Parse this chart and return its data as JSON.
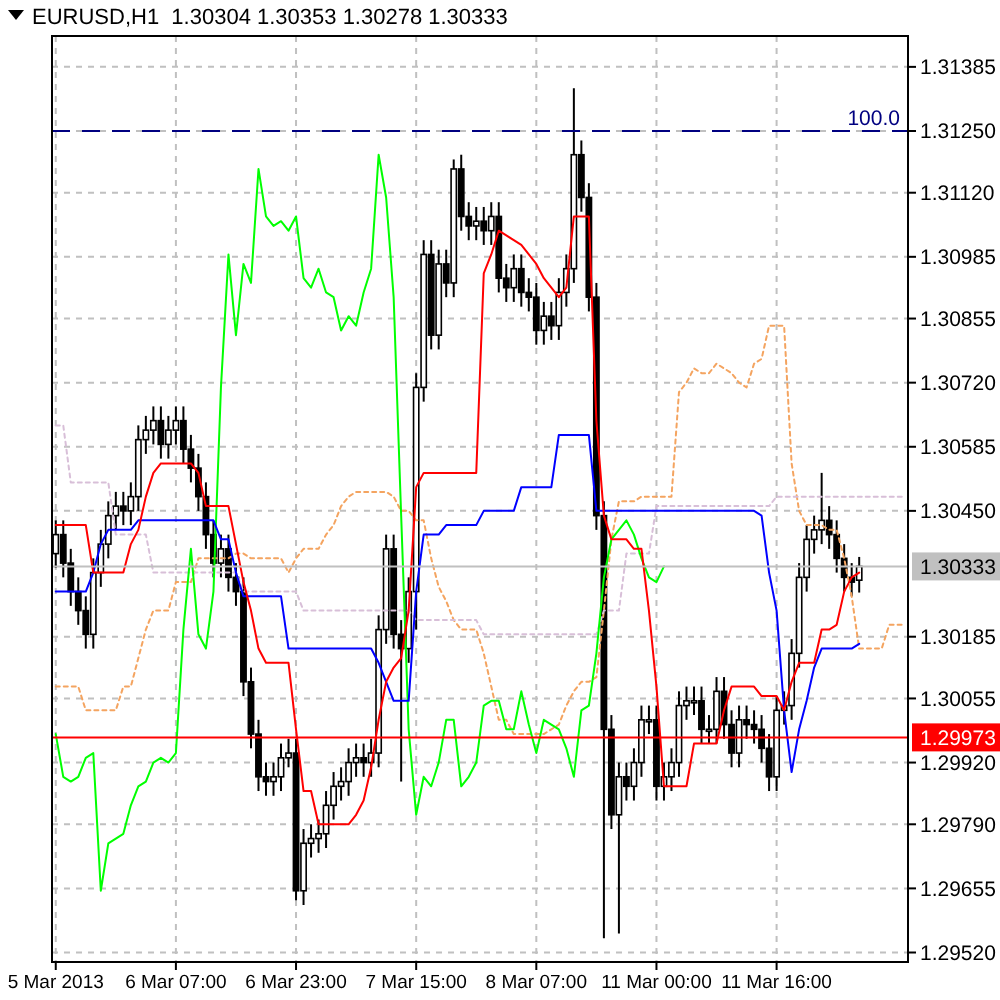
{
  "chart_data": {
    "type": "candlestick",
    "title": "EURUSD,H1  1.30304 1.30353 1.30278 1.30333",
    "categories": [
      "5 Mar 2013",
      null,
      null,
      null,
      null,
      null,
      null,
      null,
      null,
      null,
      null,
      null,
      null,
      null,
      null,
      null,
      "6 Mar 07:00",
      null,
      null,
      null,
      null,
      null,
      null,
      null,
      null,
      null,
      null,
      null,
      null,
      null,
      null,
      null,
      "6 Mar 23:00",
      null,
      null,
      null,
      null,
      null,
      null,
      null,
      null,
      null,
      null,
      null,
      null,
      null,
      null,
      null,
      "7 Mar 15:00",
      null,
      null,
      null,
      null,
      null,
      null,
      null,
      null,
      null,
      null,
      null,
      null,
      null,
      null,
      null,
      "8 Mar 07:00",
      null,
      null,
      null,
      null,
      null,
      null,
      null,
      null,
      null,
      null,
      null,
      null,
      null,
      null,
      null,
      "11 Mar 00:00",
      null,
      null,
      null,
      null,
      null,
      null,
      null,
      null,
      null,
      null,
      null,
      null,
      null,
      null,
      null,
      "11 Mar 16:00",
      null,
      null,
      null,
      null,
      null,
      null,
      null,
      null,
      null,
      null,
      null,
      null,
      null,
      null,
      null,
      null,
      null
    ],
    "ohlc": [
      [
        1.3036,
        1.3043,
        1.3033,
        1.304
      ],
      [
        1.304,
        1.3043,
        1.3031,
        1.3034
      ],
      [
        1.3034,
        1.3037,
        1.3025,
        1.3028
      ],
      [
        1.3028,
        1.3031,
        1.3021,
        1.3024
      ],
      [
        1.3024,
        1.3027,
        1.3016,
        1.3019
      ],
      [
        1.3019,
        1.3035,
        1.3016,
        1.3032
      ],
      [
        1.3032,
        1.3041,
        1.3029,
        1.3038
      ],
      [
        1.3038,
        1.3047,
        1.3035,
        1.3044
      ],
      [
        1.3044,
        1.3049,
        1.3041,
        1.3046
      ],
      [
        1.3046,
        1.3049,
        1.3042,
        1.3045
      ],
      [
        1.3045,
        1.3051,
        1.3042,
        1.3048
      ],
      [
        1.3048,
        1.3063,
        1.3045,
        1.306
      ],
      [
        1.306,
        1.3065,
        1.3057,
        1.3062
      ],
      [
        1.3062,
        1.3067,
        1.3059,
        1.3064
      ],
      [
        1.3064,
        1.3067,
        1.3056,
        1.3059
      ],
      [
        1.3059,
        1.3065,
        1.3056,
        1.3062
      ],
      [
        1.3062,
        1.3067,
        1.3059,
        1.3064
      ],
      [
        1.3064,
        1.3067,
        1.3055,
        1.3058
      ],
      [
        1.3058,
        1.3061,
        1.3051,
        1.3054
      ],
      [
        1.3054,
        1.3057,
        1.3045,
        1.3048
      ],
      [
        1.3048,
        1.3051,
        1.3037,
        1.304
      ],
      [
        1.304,
        1.3043,
        1.3031,
        1.3034
      ],
      [
        1.3034,
        1.304,
        1.3031,
        1.3037
      ],
      [
        1.3037,
        1.304,
        1.3028,
        1.3031
      ],
      [
        1.3031,
        1.3034,
        1.3025,
        1.3028
      ],
      [
        1.3028,
        1.3031,
        1.3006,
        1.3009
      ],
      [
        1.3009,
        1.3012,
        1.2995,
        1.2998
      ],
      [
        1.2998,
        1.3001,
        1.2986,
        1.2989
      ],
      [
        1.2989,
        1.2992,
        1.2985,
        1.2988
      ],
      [
        1.2988,
        1.2992,
        1.2985,
        1.2989
      ],
      [
        1.2989,
        1.2996,
        1.2986,
        1.2993
      ],
      [
        1.2993,
        1.2997,
        1.2991,
        1.2994
      ],
      [
        1.2994,
        1.2997,
        1.2963,
        1.2965
      ],
      [
        1.2965,
        1.2978,
        1.2962,
        1.2975
      ],
      [
        1.2975,
        1.2979,
        1.2972,
        1.2976
      ],
      [
        1.2976,
        1.298,
        1.2973,
        1.2977
      ],
      [
        1.2977,
        1.2986,
        1.2974,
        1.2983
      ],
      [
        1.2983,
        1.299,
        1.298,
        1.2987
      ],
      [
        1.2987,
        1.2991,
        1.2984,
        1.2988
      ],
      [
        1.2988,
        1.2995,
        1.2985,
        1.2992
      ],
      [
        1.2992,
        1.2996,
        1.2989,
        1.2993
      ],
      [
        1.2993,
        1.2996,
        1.2989,
        1.2992
      ],
      [
        1.2992,
        1.2997,
        1.2989,
        1.2994
      ],
      [
        1.2994,
        1.3023,
        1.2991,
        1.302
      ],
      [
        1.302,
        1.304,
        1.3017,
        1.3037
      ],
      [
        1.3037,
        1.304,
        1.3016,
        1.3019
      ],
      [
        1.3019,
        1.3022,
        1.2988,
        1.3016
      ],
      [
        1.3016,
        1.3031,
        1.3013,
        1.3028
      ],
      [
        1.3028,
        1.3074,
        1.302,
        1.3071
      ],
      [
        1.3071,
        1.3102,
        1.3068,
        1.3099
      ],
      [
        1.3099,
        1.3102,
        1.3079,
        1.3082
      ],
      [
        1.3082,
        1.31,
        1.3079,
        1.3097
      ],
      [
        1.3097,
        1.31,
        1.309,
        1.3093
      ],
      [
        1.3093,
        1.3119,
        1.309,
        1.3117
      ],
      [
        1.3117,
        1.312,
        1.3104,
        1.3107
      ],
      [
        1.3107,
        1.311,
        1.3102,
        1.3105
      ],
      [
        1.3105,
        1.3109,
        1.3102,
        1.3106
      ],
      [
        1.3106,
        1.3109,
        1.3101,
        1.3104
      ],
      [
        1.3104,
        1.311,
        1.3101,
        1.3107
      ],
      [
        1.3107,
        1.311,
        1.3091,
        1.3094
      ],
      [
        1.3094,
        1.3097,
        1.3089,
        1.3092
      ],
      [
        1.3092,
        1.3099,
        1.3089,
        1.3096
      ],
      [
        1.3096,
        1.3099,
        1.3088,
        1.3091
      ],
      [
        1.3091,
        1.3094,
        1.3087,
        1.309
      ],
      [
        1.309,
        1.3093,
        1.308,
        1.3083
      ],
      [
        1.3083,
        1.3089,
        1.308,
        1.3086
      ],
      [
        1.3086,
        1.3089,
        1.3081,
        1.3084
      ],
      [
        1.3084,
        1.3094,
        1.3081,
        1.3091
      ],
      [
        1.3091,
        1.3099,
        1.3088,
        1.3096
      ],
      [
        1.3096,
        1.3134,
        1.3093,
        1.312
      ],
      [
        1.312,
        1.3123,
        1.3108,
        1.3111
      ],
      [
        1.3111,
        1.3114,
        1.3087,
        1.309
      ],
      [
        1.309,
        1.3093,
        1.3041,
        1.3044
      ],
      [
        1.3044,
        1.3047,
        1.2955,
        1.2999
      ],
      [
        1.2999,
        1.3002,
        1.2978,
        1.2981
      ],
      [
        1.2981,
        1.2992,
        1.2956,
        1.2989
      ],
      [
        1.2989,
        1.2992,
        1.2984,
        1.2987
      ],
      [
        1.2987,
        1.2995,
        1.2984,
        1.2992
      ],
      [
        1.2992,
        1.3004,
        1.2989,
        1.3001
      ],
      [
        1.3001,
        1.3004,
        1.2998,
        1.3001
      ],
      [
        1.3001,
        1.3004,
        1.2984,
        1.2987
      ],
      [
        1.2987,
        1.2992,
        1.2984,
        1.2989
      ],
      [
        1.2989,
        1.2995,
        1.2986,
        1.2992
      ],
      [
        1.2992,
        1.3007,
        1.2989,
        1.3004
      ],
      [
        1.3004,
        1.3008,
        1.3001,
        1.3005
      ],
      [
        1.3005,
        1.3008,
        1.3002,
        1.3005
      ],
      [
        1.3005,
        1.3008,
        1.2996,
        1.2999
      ],
      [
        1.2999,
        1.3002,
        1.2996,
        1.2999
      ],
      [
        1.2999,
        1.301,
        1.2996,
        1.3007
      ],
      [
        1.3007,
        1.301,
        1.2997,
        1.3
      ],
      [
        1.3,
        1.3003,
        1.2991,
        1.2994
      ],
      [
        1.2994,
        1.3004,
        1.2991,
        1.3001
      ],
      [
        1.3001,
        1.3004,
        1.2997,
        1.3
      ],
      [
        1.3,
        1.3003,
        1.2996,
        1.2999
      ],
      [
        1.2999,
        1.3002,
        1.2992,
        1.2995
      ],
      [
        1.2995,
        1.2998,
        1.2986,
        1.2989
      ],
      [
        1.2989,
        1.3006,
        1.2986,
        1.3003
      ],
      [
        1.3003,
        1.3007,
        1.3,
        1.3004
      ],
      [
        1.3004,
        1.3018,
        1.3001,
        1.3015
      ],
      [
        1.3015,
        1.3034,
        1.3012,
        1.3031
      ],
      [
        1.3031,
        1.3042,
        1.3028,
        1.3039
      ],
      [
        1.3039,
        1.3044,
        1.3036,
        1.3041
      ],
      [
        1.3041,
        1.3053,
        1.3038,
        1.3043
      ],
      [
        1.3043,
        1.3046,
        1.3037,
        1.304
      ],
      [
        1.304,
        1.3043,
        1.3032,
        1.3035
      ],
      [
        1.3035,
        1.3038,
        1.3028,
        1.3031
      ],
      [
        1.3031,
        1.3034,
        1.3027,
        1.303
      ],
      [
        1.30304,
        1.30353,
        1.30278,
        1.30333
      ],
      null,
      null,
      null,
      null,
      null,
      null
    ],
    "series": [
      {
        "type": "line",
        "color": "#f4a460",
        "line_style": "dotted",
        "values": [
          1.3008,
          1.3008,
          1.3008,
          1.3008,
          1.3003,
          1.3003,
          1.3003,
          1.3003,
          1.3003,
          1.3008,
          1.3008,
          1.3014,
          1.302,
          1.3024,
          1.3024,
          1.3024,
          1.303,
          1.303,
          1.303,
          1.3035,
          1.3035,
          1.3035,
          1.3035,
          1.3035,
          1.3036,
          1.3036,
          1.3035,
          1.3035,
          1.3035,
          1.3035,
          1.3035,
          1.3032,
          1.3035,
          1.3037,
          1.3037,
          1.3037,
          1.304,
          1.3042,
          1.3046,
          1.3048,
          1.3049,
          1.3049,
          1.3049,
          1.3049,
          1.3049,
          1.3048,
          1.3045,
          1.3045,
          1.3043,
          1.3043,
          1.3035,
          1.3029,
          1.3026,
          1.3022,
          1.302,
          1.302,
          1.302,
          1.3015,
          1.3008,
          1.3001,
          1.3001,
          1.2998,
          1.2998,
          1.2998,
          1.2998,
          1.2998,
          1.2999,
          1.3,
          1.3004,
          1.3007,
          1.3009,
          1.3009,
          1.301,
          1.3024,
          1.3039,
          1.3047,
          1.3047,
          1.3047,
          1.3048,
          1.3048,
          1.3048,
          1.3048,
          1.3048,
          1.307,
          1.3072,
          1.3075,
          1.3074,
          1.3074,
          1.3076,
          1.3075,
          1.3074,
          1.3072,
          1.3071,
          1.3076,
          1.3077,
          1.3084,
          1.3084,
          1.3084,
          1.3055,
          1.3045,
          1.3042,
          1.3042,
          1.3042,
          1.3041,
          1.3041,
          1.3035,
          1.3027,
          1.3016,
          1.3016,
          1.3016,
          1.3016,
          1.3021,
          1.3021,
          1.3021
        ]
      },
      {
        "type": "line",
        "color": "#d8bfd8",
        "line_style": "dotted",
        "values": [
          1.3063,
          1.3063,
          1.3051,
          1.3051,
          1.3051,
          1.3051,
          1.3051,
          1.3051,
          1.304,
          1.304,
          1.304,
          1.304,
          1.304,
          1.3032,
          1.3032,
          1.3032,
          1.3032,
          1.3032,
          1.3032,
          1.3032,
          1.3032,
          1.3032,
          1.3032,
          1.3032,
          1.3032,
          1.3028,
          1.3028,
          1.3028,
          1.3028,
          1.3028,
          1.3028,
          1.3028,
          1.3028,
          1.3024,
          1.3024,
          1.3024,
          1.3024,
          1.3024,
          1.3024,
          1.3024,
          1.3024,
          1.3024,
          1.3024,
          1.3024,
          1.3024,
          1.3024,
          1.3024,
          1.3024,
          1.3022,
          1.3022,
          1.3022,
          1.3022,
          1.3022,
          1.3022,
          1.3022,
          1.3022,
          1.3022,
          1.3019,
          1.3019,
          1.3019,
          1.3019,
          1.3019,
          1.3019,
          1.3019,
          1.3019,
          1.3019,
          1.3019,
          1.3019,
          1.3019,
          1.3019,
          1.3019,
          1.3019,
          1.3019,
          1.3024,
          1.3024,
          1.3024,
          1.3036,
          1.3036,
          1.3036,
          1.3036,
          1.3046,
          1.3046,
          1.3046,
          1.3046,
          1.3046,
          1.3046,
          1.3046,
          1.3046,
          1.3046,
          1.3046,
          1.3046,
          1.3046,
          1.3046,
          1.3046,
          1.3046,
          1.3046,
          1.3048,
          1.3048,
          1.3048,
          1.3048,
          1.3048,
          1.3048,
          1.3048,
          1.3048,
          1.3048,
          1.3048,
          1.3048,
          1.3048,
          1.3048,
          1.3048,
          1.3048,
          1.3048,
          1.3048,
          1.3048
        ]
      },
      {
        "type": "line",
        "color": "#00ff00",
        "values": [
          1.2998,
          1.2989,
          1.2988,
          1.2989,
          1.2993,
          1.2994,
          1.2965,
          1.2975,
          1.2976,
          1.2977,
          1.2983,
          1.2987,
          1.2988,
          1.2992,
          1.2993,
          1.2992,
          1.2994,
          1.302,
          1.3037,
          1.3019,
          1.3016,
          1.3028,
          1.3071,
          1.3099,
          1.3082,
          1.3097,
          1.3093,
          1.3117,
          1.3107,
          1.3105,
          1.3106,
          1.3104,
          1.3107,
          1.3094,
          1.3092,
          1.3096,
          1.3091,
          1.309,
          1.3083,
          1.3086,
          1.3084,
          1.3091,
          1.3096,
          1.312,
          1.3111,
          1.309,
          1.3044,
          1.2999,
          1.2981,
          1.2989,
          1.2987,
          1.2992,
          1.3001,
          1.3001,
          1.2987,
          1.2989,
          1.2992,
          1.3004,
          1.3005,
          1.3005,
          1.2999,
          1.2999,
          1.3007,
          1.3,
          1.2994,
          1.3001,
          1.3,
          1.2999,
          1.2995,
          1.2989,
          1.3003,
          1.3004,
          1.3015,
          1.3031,
          1.3039,
          1.3041,
          1.3043,
          1.304,
          1.3035,
          1.3031,
          1.303,
          1.30333,
          null,
          null,
          null,
          null,
          null,
          null,
          null,
          null,
          null,
          null,
          null,
          null,
          null,
          null,
          null,
          null,
          null,
          null,
          null,
          null,
          null,
          null,
          null,
          null,
          null,
          null,
          null,
          null,
          null,
          null,
          null,
          null
        ]
      },
      {
        "type": "line",
        "color": "#0000ff",
        "values": [
          1.3028,
          1.3028,
          1.3028,
          1.3028,
          1.3028,
          1.3032,
          1.3038,
          1.3041,
          1.3041,
          1.3041,
          1.3041,
          1.3043,
          1.3043,
          1.3043,
          1.3043,
          1.3043,
          1.3043,
          1.3043,
          1.3043,
          1.3043,
          1.3043,
          1.3043,
          1.3039,
          1.3039,
          1.3032,
          1.3027,
          1.3027,
          1.3027,
          1.3027,
          1.3027,
          1.3027,
          1.3016,
          1.3016,
          1.3016,
          1.3016,
          1.3016,
          1.3016,
          1.3016,
          1.3016,
          1.3016,
          1.3016,
          1.3016,
          1.3016,
          1.3013,
          1.3009,
          1.3005,
          1.3005,
          1.3005,
          1.3028,
          1.304,
          1.304,
          1.304,
          1.3042,
          1.3042,
          1.3042,
          1.3042,
          1.3042,
          1.3045,
          1.3045,
          1.3045,
          1.3045,
          1.3045,
          1.305,
          1.305,
          1.305,
          1.305,
          1.305,
          1.3061,
          1.3061,
          1.3061,
          1.3061,
          1.3061,
          1.3045,
          1.3045,
          1.3045,
          1.3045,
          1.3045,
          1.3045,
          1.3045,
          1.3045,
          1.3045,
          1.3045,
          1.3045,
          1.3045,
          1.3045,
          1.3045,
          1.3045,
          1.3045,
          1.3045,
          1.3045,
          1.3045,
          1.3045,
          1.3045,
          1.3045,
          1.3044,
          1.3032,
          1.3024,
          1.3003,
          1.299,
          1.2999,
          1.3005,
          1.3012,
          1.3016,
          1.3016,
          1.3016,
          1.3016,
          1.3016,
          1.3017,
          null,
          null,
          null,
          null,
          null,
          null
        ]
      },
      {
        "type": "line",
        "color": "#ff0000",
        "values": [
          1.3042,
          1.3042,
          1.3042,
          1.3042,
          1.3042,
          1.3032,
          1.3032,
          1.3032,
          1.3032,
          1.3032,
          1.3038,
          1.3041,
          1.3048,
          1.3053,
          1.3055,
          1.3055,
          1.3055,
          1.3055,
          1.3055,
          1.3053,
          1.3046,
          1.3046,
          1.3046,
          1.3046,
          1.3038,
          1.303,
          1.3024,
          1.3016,
          1.3013,
          1.3013,
          1.3013,
          1.3013,
          1.2999,
          1.2986,
          1.2986,
          1.2979,
          1.2979,
          1.2979,
          1.2979,
          1.2979,
          1.2981,
          1.2984,
          1.2991,
          1.3001,
          1.3009,
          1.3012,
          1.3014,
          1.3024,
          1.305,
          1.3053,
          1.3053,
          1.3053,
          1.3053,
          1.3053,
          1.3053,
          1.3053,
          1.3053,
          1.3095,
          1.3099,
          1.3104,
          1.3103,
          1.3102,
          1.3101,
          1.3099,
          1.3097,
          1.3094,
          1.3092,
          1.309,
          1.3092,
          1.3107,
          1.3107,
          1.3107,
          1.3064,
          1.3044,
          1.3039,
          1.3039,
          1.3039,
          1.3037,
          1.3037,
          1.3024,
          1.3008,
          1.2987,
          1.2987,
          1.2987,
          1.2987,
          1.2996,
          1.2996,
          1.2996,
          1.2996,
          1.3003,
          1.3008,
          1.3008,
          1.3008,
          1.3008,
          1.3006,
          1.3006,
          1.3006,
          1.3003,
          1.3009,
          1.3013,
          1.3013,
          1.3013,
          1.302,
          1.302,
          1.3021,
          1.3028,
          1.3031,
          1.3032,
          null,
          null,
          null,
          null,
          null,
          null
        ]
      }
    ],
    "ylim": [
      1.295,
      1.3145
    ],
    "yticks": [
      {
        "value": 1.31385,
        "label": "1.31385"
      },
      {
        "value": 1.3125,
        "label": "1.31250"
      },
      {
        "value": 1.3112,
        "label": "1.31120"
      },
      {
        "value": 1.30985,
        "label": "1.30985"
      },
      {
        "value": 1.30855,
        "label": "1.30855"
      },
      {
        "value": 1.3072,
        "label": "1.30720"
      },
      {
        "value": 1.30585,
        "label": "1.30585"
      },
      {
        "value": 1.3045,
        "label": "1.30450"
      },
      {
        "value": 1.30185,
        "label": "1.30185"
      },
      {
        "value": 1.30055,
        "label": "1.30055"
      },
      {
        "value": 1.2992,
        "label": "1.29920"
      },
      {
        "value": 1.2979,
        "label": "1.29790"
      },
      {
        "value": 1.29655,
        "label": "1.29655"
      },
      {
        "value": 1.2952,
        "label": "1.29520"
      }
    ],
    "ref_lines": [
      {
        "axis": "y",
        "value": 1.3125,
        "color": "#000080",
        "line_style": "dashed"
      },
      {
        "axis": "y",
        "value": 1.30333,
        "label": "1.30333",
        "color": "#c0c0c0"
      },
      {
        "axis": "y",
        "value": 1.29973,
        "label": "1.29973",
        "color": "#ff0000"
      }
    ],
    "annotations": [
      {
        "text": "100.0",
        "y": 1.3125
      }
    ],
    "grid": true
  }
}
